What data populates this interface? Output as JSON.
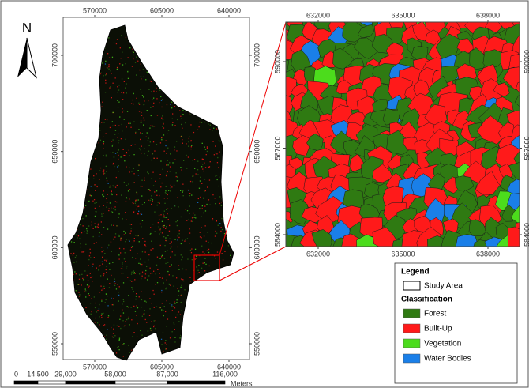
{
  "north": "N",
  "main_map": {
    "x_ticks": [
      570000,
      605000,
      640000
    ],
    "y_ticks": [
      700000,
      650000,
      600000,
      550000
    ]
  },
  "inset_map": {
    "x_ticks": [
      632000,
      635000,
      638000
    ],
    "y_ticks": [
      590000,
      587000,
      584000
    ]
  },
  "legend": {
    "title": "Legend",
    "boundary": "Study Area",
    "subtitle": "Classification",
    "classes": [
      {
        "label": "Forest",
        "color": "#2f7a12"
      },
      {
        "label": "Built-Up",
        "color": "#ff1a1a"
      },
      {
        "label": "Vegetation",
        "color": "#4cdc1c"
      },
      {
        "label": "Water Bodies",
        "color": "#1a7fe8"
      }
    ]
  },
  "scale_bar": {
    "labels": [
      "0",
      "14,500",
      "29,000",
      "58,000",
      "87,000",
      "116,000"
    ],
    "unit": "Meters"
  }
}
